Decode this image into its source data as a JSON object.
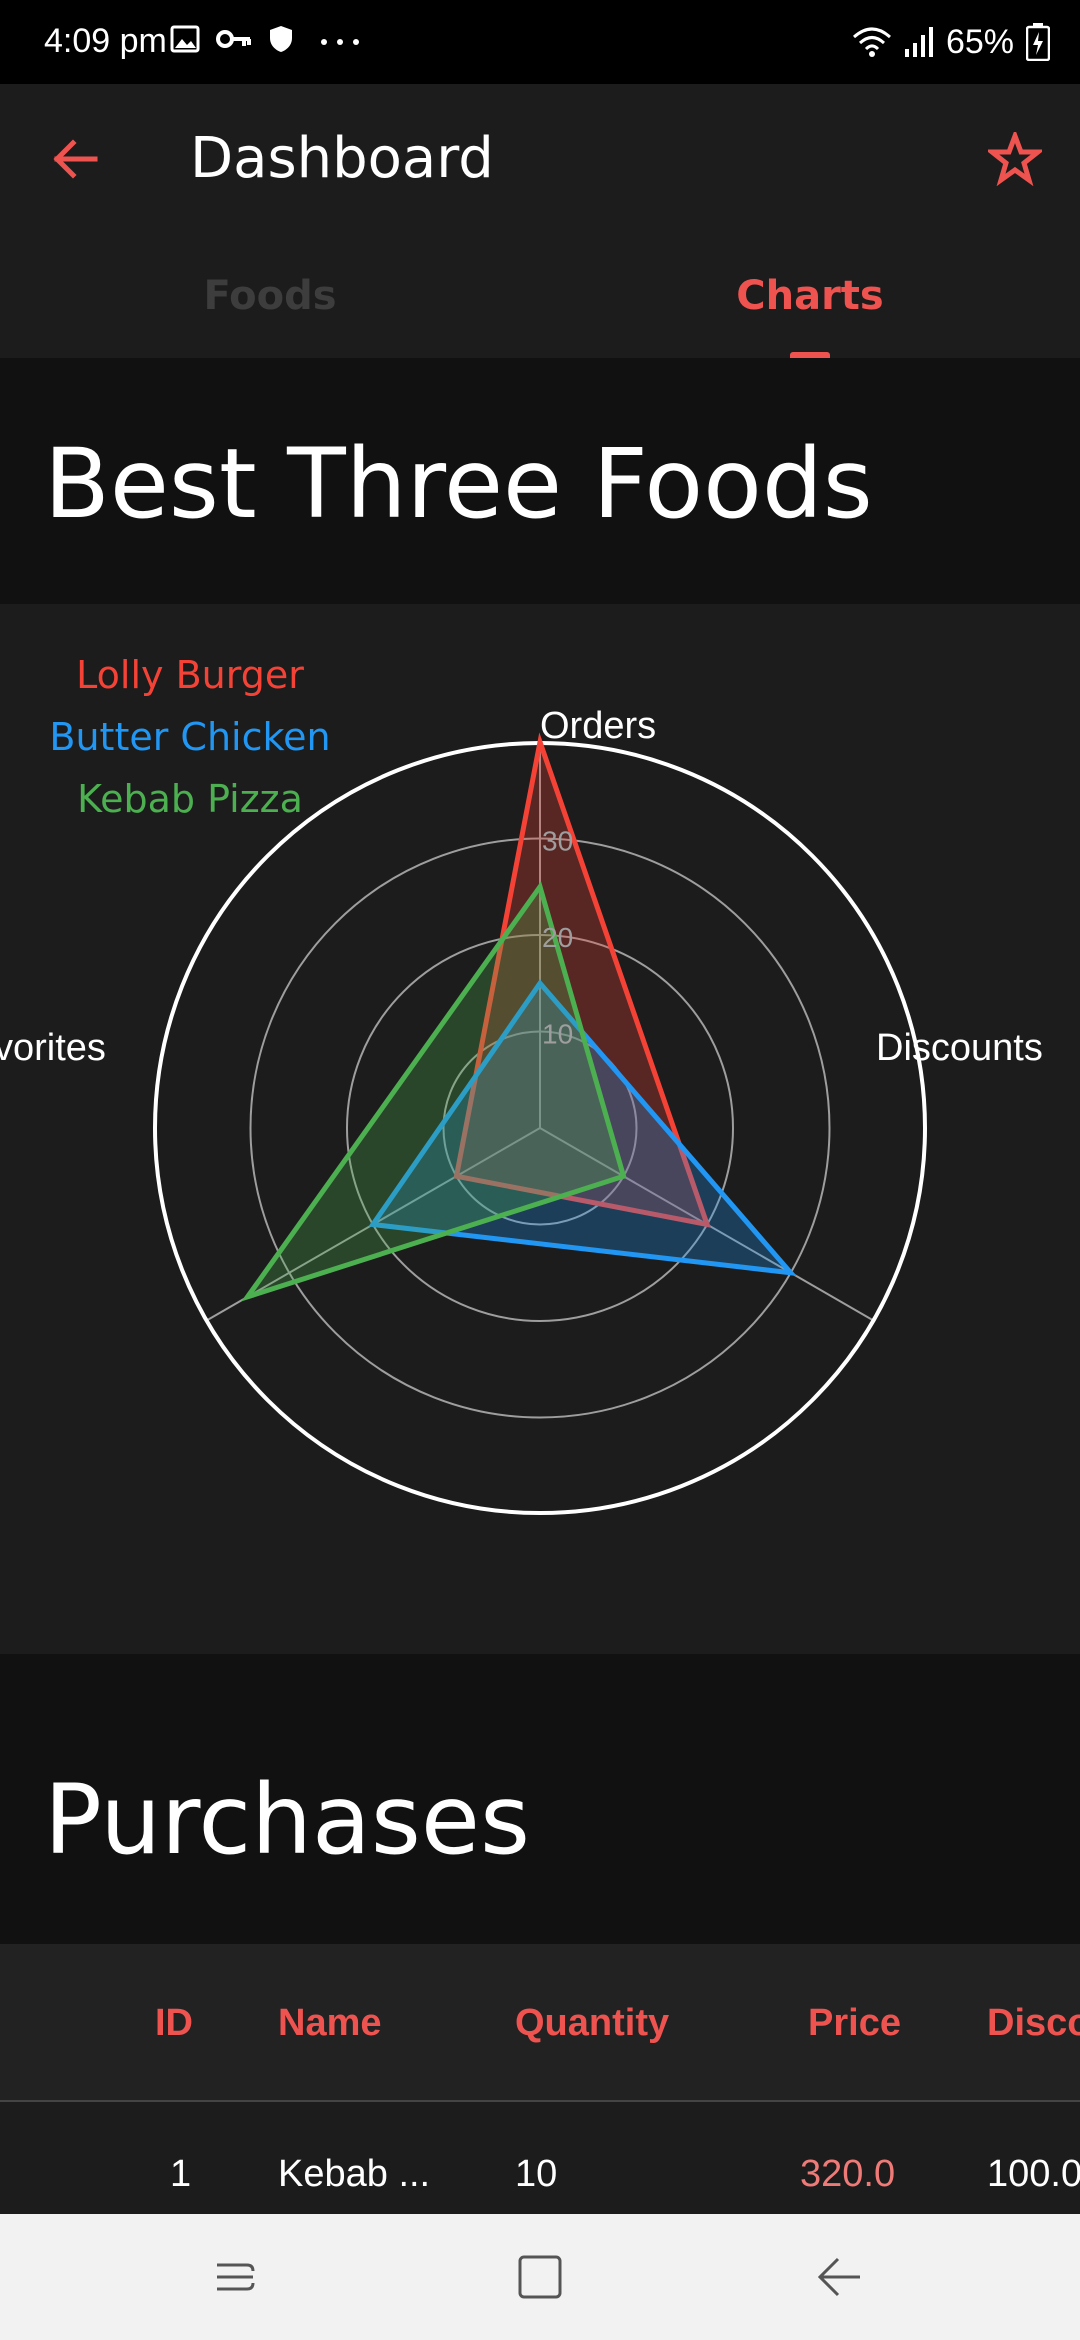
{
  "status_bar": {
    "time": "4:09 pm",
    "battery": "65%",
    "left_icons": [
      "image-icon",
      "key-icon",
      "shield-icon",
      "more-icon"
    ],
    "right_icons": [
      "wifi-icon",
      "signal-icon",
      "battery-icon"
    ]
  },
  "app_bar": {
    "title": "Dashboard",
    "accent_color": "#ef5350"
  },
  "tabs": [
    {
      "label": "Foods",
      "selected": false
    },
    {
      "label": "Charts",
      "selected": true
    }
  ],
  "chart_section": {
    "title": "Best Three Foods"
  },
  "chart_data": {
    "type": "radar",
    "axes": [
      "Orders",
      "Discounts",
      "Favorites"
    ],
    "axis_labels_display": [
      "Orders",
      "Discounts",
      "vorites"
    ],
    "ticks": [
      "10",
      "20",
      "30"
    ],
    "rmax": 40,
    "grid": true,
    "legend_position": "top-left",
    "series": [
      {
        "name": "Lolly Burger",
        "color": "#f44336",
        "values": [
          40,
          20,
          10
        ]
      },
      {
        "name": "Butter Chicken",
        "color": "#2196f3",
        "values": [
          15,
          30,
          20
        ]
      },
      {
        "name": "Kebab Pizza",
        "color": "#4caf50",
        "values": [
          25,
          10,
          35
        ]
      }
    ]
  },
  "purchases_section": {
    "title": "Purchases"
  },
  "table": {
    "columns": [
      "ID",
      "Name",
      "Quantity",
      "Price",
      "Disco"
    ],
    "rows": [
      {
        "id": "1",
        "name": "Kebab ...",
        "quantity": "10",
        "price": "320.0",
        "discount": "100.0"
      }
    ]
  }
}
